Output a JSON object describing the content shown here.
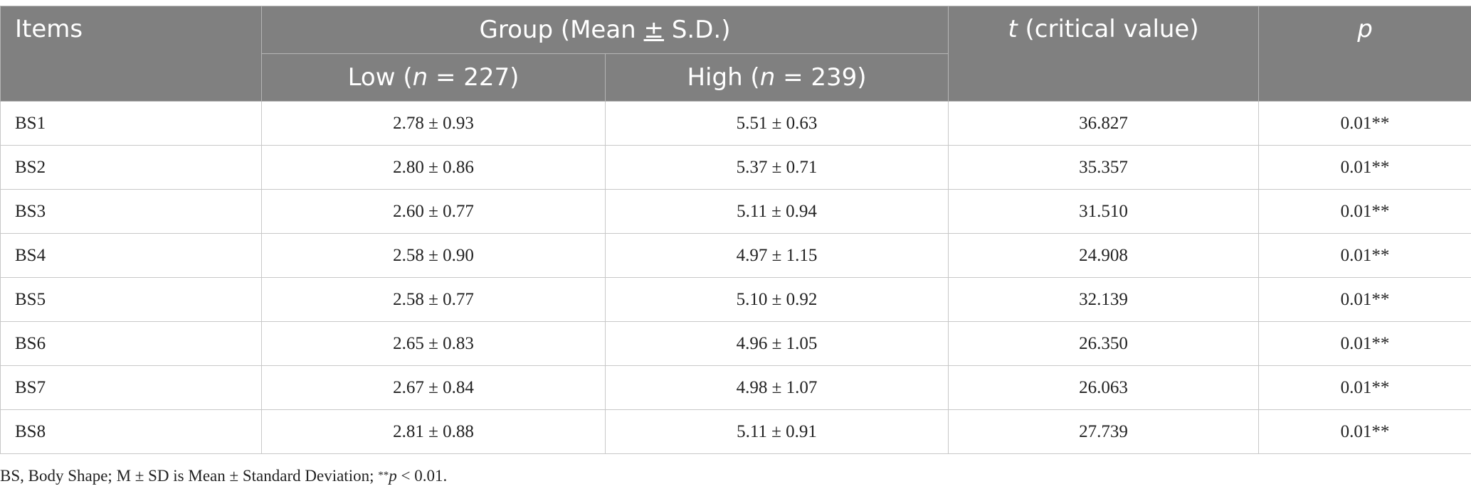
{
  "table": {
    "header": {
      "items": "Items",
      "group": "Group (Mean ± S.D.)",
      "group_prefix": "Group (Mean ",
      "group_pm": "±",
      "group_suffix": " S.D.)",
      "low_prefix": "Low (",
      "low_n": "n",
      "low_suffix": " = 227)",
      "high_prefix": "High (",
      "high_n": "n",
      "high_suffix": " = 239)",
      "t_symbol": "t",
      "t_suffix": " (critical value)",
      "p": "p"
    },
    "rows": [
      {
        "item": "BS1",
        "low": "2.78 ± 0.93",
        "high": "5.51 ± 0.63",
        "t": "36.827",
        "p": "0.01**"
      },
      {
        "item": "BS2",
        "low": "2.80 ± 0.86",
        "high": "5.37 ± 0.71",
        "t": "35.357",
        "p": "0.01**"
      },
      {
        "item": "BS3",
        "low": "2.60 ± 0.77",
        "high": "5.11 ± 0.94",
        "t": "31.510",
        "p": "0.01**"
      },
      {
        "item": "BS4",
        "low": "2.58 ± 0.90",
        "high": "4.97 ± 1.15",
        "t": "24.908",
        "p": "0.01**"
      },
      {
        "item": "BS5",
        "low": "2.58 ± 0.77",
        "high": "5.10 ± 0.92",
        "t": "32.139",
        "p": "0.01**"
      },
      {
        "item": "BS6",
        "low": "2.65 ± 0.83",
        "high": "4.96 ± 1.05",
        "t": "26.350",
        "p": "0.01**"
      },
      {
        "item": "BS7",
        "low": "2.67 ± 0.84",
        "high": "4.98 ± 1.07",
        "t": "26.063",
        "p": "0.01**"
      },
      {
        "item": "BS8",
        "low": "2.81 ± 0.88",
        "high": "5.11 ± 0.91",
        "t": "27.739",
        "p": "0.01**"
      }
    ]
  },
  "footnote": {
    "text_before": "BS, Body Shape; M ± SD is Mean ± Standard Deviation; ",
    "stars": "**",
    "p_symbol": "p",
    "text_after": " < 0.01."
  }
}
